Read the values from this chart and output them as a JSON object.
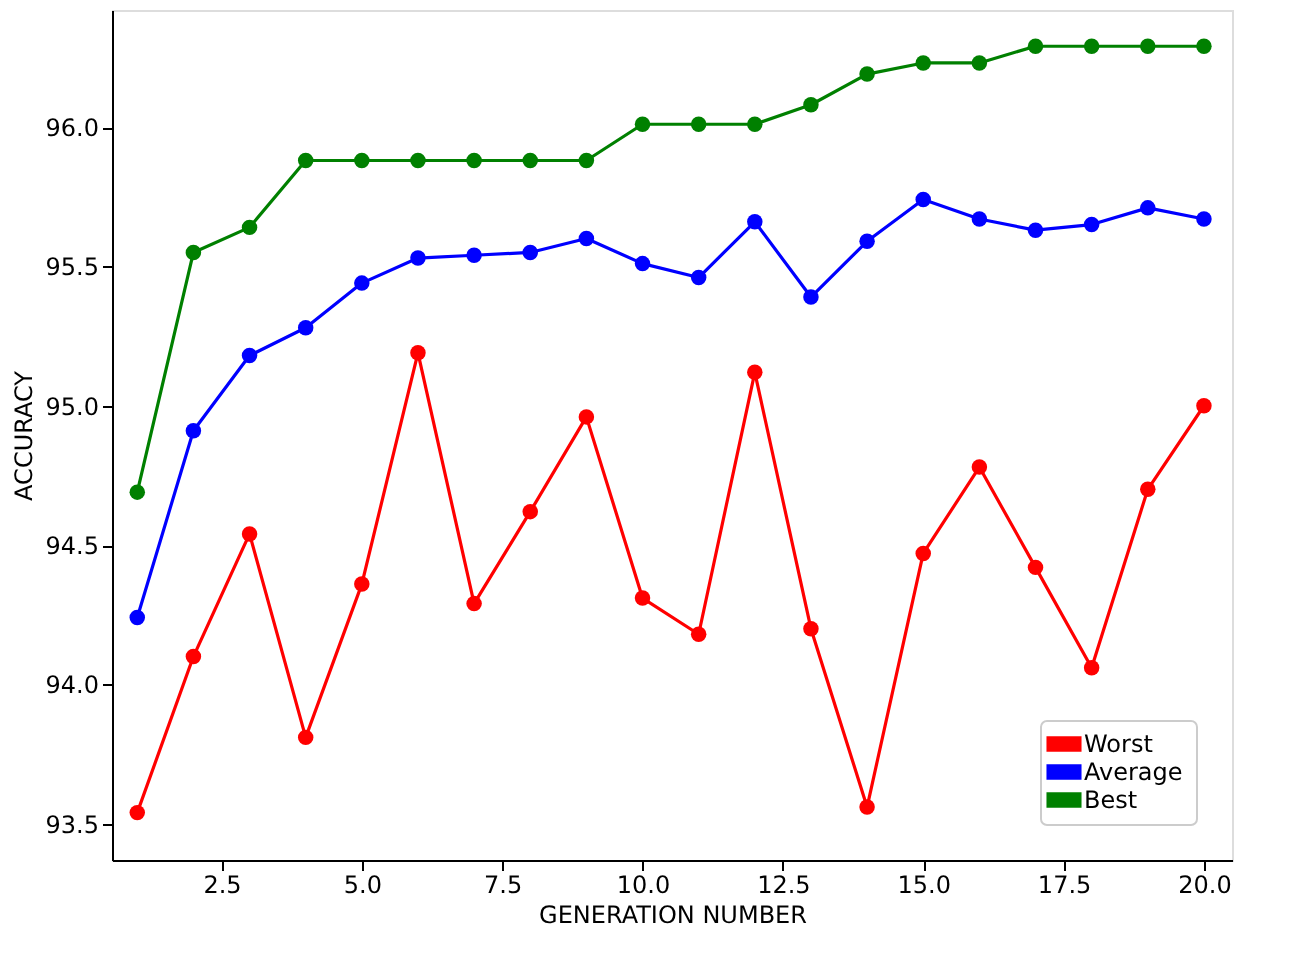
{
  "chart_data": {
    "type": "line",
    "xlabel": "GENERATION NUMBER",
    "ylabel": "ACCURACY",
    "x": [
      1,
      2,
      3,
      4,
      5,
      6,
      7,
      8,
      9,
      10,
      11,
      12,
      13,
      14,
      15,
      16,
      17,
      18,
      19,
      20
    ],
    "series": [
      {
        "name": "Worst",
        "color": "#ff0000",
        "values": [
          93.54,
          94.1,
          94.54,
          93.81,
          94.36,
          95.19,
          94.29,
          94.62,
          94.96,
          94.31,
          94.18,
          95.12,
          94.2,
          93.56,
          94.47,
          94.78,
          94.42,
          94.06,
          94.7,
          95.0
        ]
      },
      {
        "name": "Average",
        "color": "#0000ff",
        "values": [
          94.24,
          94.91,
          95.18,
          95.28,
          95.44,
          95.53,
          95.54,
          95.55,
          95.6,
          95.51,
          95.46,
          95.66,
          95.39,
          95.59,
          95.74,
          95.67,
          95.63,
          95.65,
          95.71,
          95.67
        ]
      },
      {
        "name": "Best",
        "color": "#008000",
        "values": [
          94.69,
          95.55,
          95.64,
          95.88,
          95.88,
          95.88,
          95.88,
          95.88,
          95.88,
          96.01,
          96.01,
          96.01,
          96.08,
          96.19,
          96.23,
          96.23,
          96.29,
          96.29,
          96.29,
          96.29
        ]
      }
    ],
    "xlim": [
      0.55,
      20.5
    ],
    "xticks": [
      2.5,
      {
        "value": 5,
        "label": "5.0"
      },
      7.5,
      {
        "value": 10,
        "label": "10.0"
      },
      12.5,
      {
        "value": 15,
        "label": "15.0"
      },
      17.5,
      {
        "value": 20,
        "label": "20.0"
      }
    ],
    "ylim": [
      93.37,
      96.42
    ],
    "yticks": [
      93.5,
      {
        "value": 94,
        "label": "94.0"
      },
      94.5,
      {
        "value": 95,
        "label": "95.0"
      },
      95.5,
      {
        "value": 96,
        "label": "96.0"
      }
    ],
    "grid": false,
    "legend": "bottom right",
    "marker": "circle",
    "line_style": "solid"
  }
}
